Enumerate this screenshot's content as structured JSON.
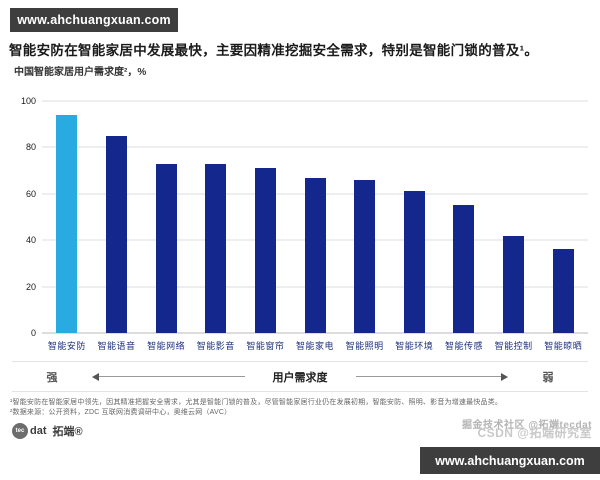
{
  "banners": {
    "top_watermark": "www.ahchuangxuan.com",
    "bottom_watermark": "www.ahchuangxuan.com"
  },
  "header": {
    "title": "智能安防在智能家居中发展最快，主要因精准挖掘安全需求，特别是智能门锁的普及¹。",
    "subtitle": "中国智能家居用户需求度²，%"
  },
  "chart_data": {
    "type": "bar",
    "title": "中国智能家居用户需求度²，%",
    "categories": [
      "智能安防",
      "智能语音",
      "智能网络",
      "智能影音",
      "智能窗帘",
      "智能家电",
      "智能照明",
      "智能环境",
      "智能传感",
      "智能控制",
      "智能晾晒"
    ],
    "values": [
      94,
      85,
      73,
      73,
      71,
      67,
      66,
      61,
      55,
      42,
      36
    ],
    "xlabel": "用户需求度",
    "ylabel": "%",
    "ylim": [
      0,
      100
    ],
    "yticks": [
      0,
      20,
      40,
      60,
      80,
      100
    ],
    "grid": true,
    "legend": "none",
    "bar_color": "#14278c",
    "highlight_index": 0,
    "highlight_color": "#29abe2"
  },
  "axis_note": {
    "left": "强",
    "center": "用户需求度",
    "right": "弱"
  },
  "footnotes": [
    "¹智能安防在智能家居中领先，因其精准把握安全需求，尤其是智能门锁的普及，尽管智能家居行业仍在发展初期，智能安防、照明、影音为增速最快品类。",
    "²数据来源：公开资料，ZDC 互联网消费调研中心，奥维云网（AVC）"
  ],
  "logo": {
    "badge": "tec",
    "name": "dat",
    "cn": "拓端®"
  },
  "faint_watermarks": {
    "line1": "掘金技术社区 @拓端tecdat",
    "line2": "CSDN @拓端研究室"
  }
}
